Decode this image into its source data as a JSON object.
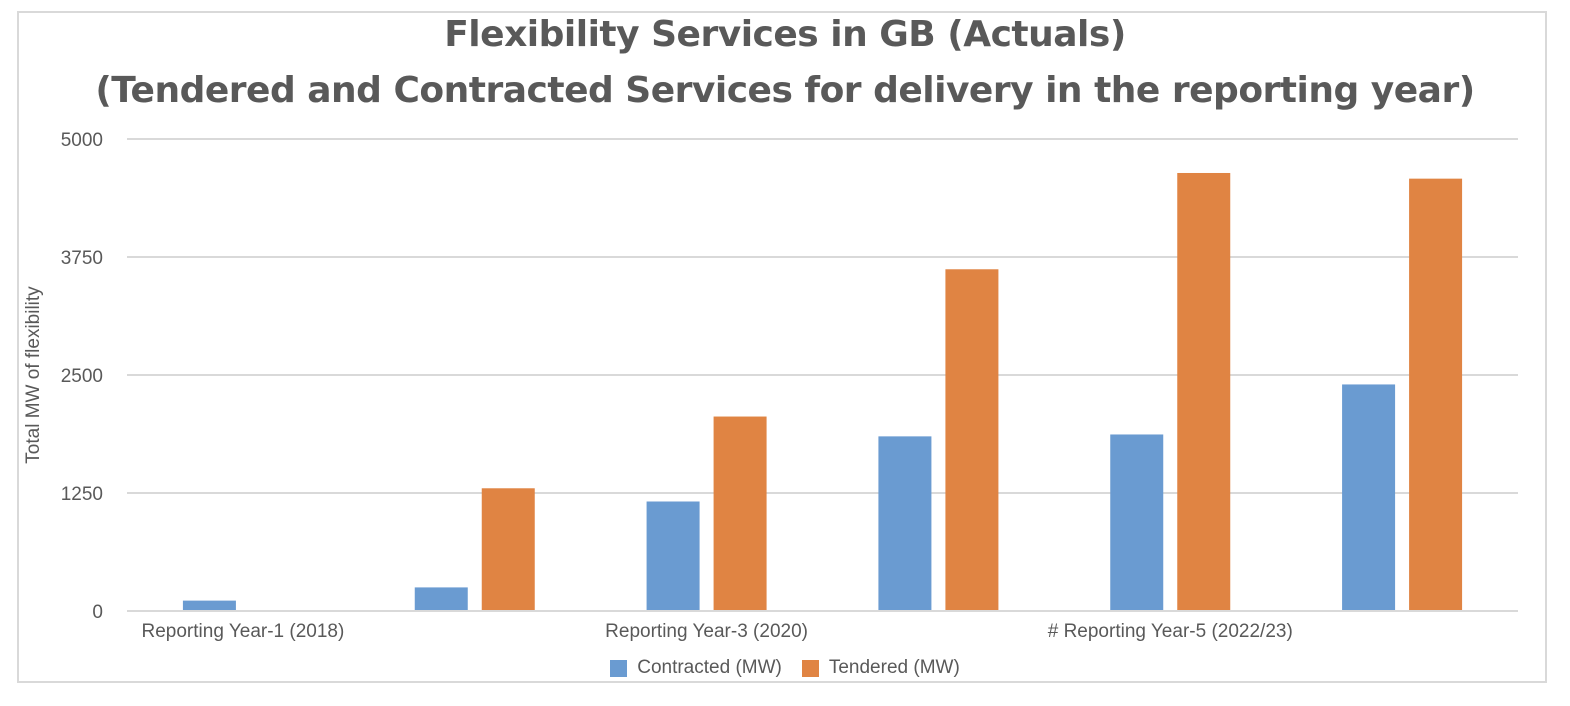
{
  "chart_data": {
    "type": "bar",
    "title": "Flexibility Services in GB (Actuals)",
    "subtitle": "(Tendered and Contracted Services for delivery in the reporting year)",
    "ylabel": "Total MW of flexibility",
    "xlabel": "",
    "ylim": [
      0,
      5000
    ],
    "yticks": [
      0,
      1250,
      2500,
      3750,
      5000
    ],
    "categories": [
      "Reporting Year-1 (2018)",
      "",
      "Reporting Year-3 (2020)",
      "",
      "# Reporting Year-5 (2022/23)",
      ""
    ],
    "series": [
      {
        "name": "Contracted (MW)",
        "color": "#6a9bd1",
        "values": [
          110,
          250,
          1160,
          1850,
          1870,
          2400
        ]
      },
      {
        "name": "Tendered (MW)",
        "color": "#e08443",
        "values": [
          0,
          1300,
          2060,
          3620,
          4640,
          4580
        ]
      }
    ],
    "grid": true,
    "legend_position": "bottom"
  }
}
